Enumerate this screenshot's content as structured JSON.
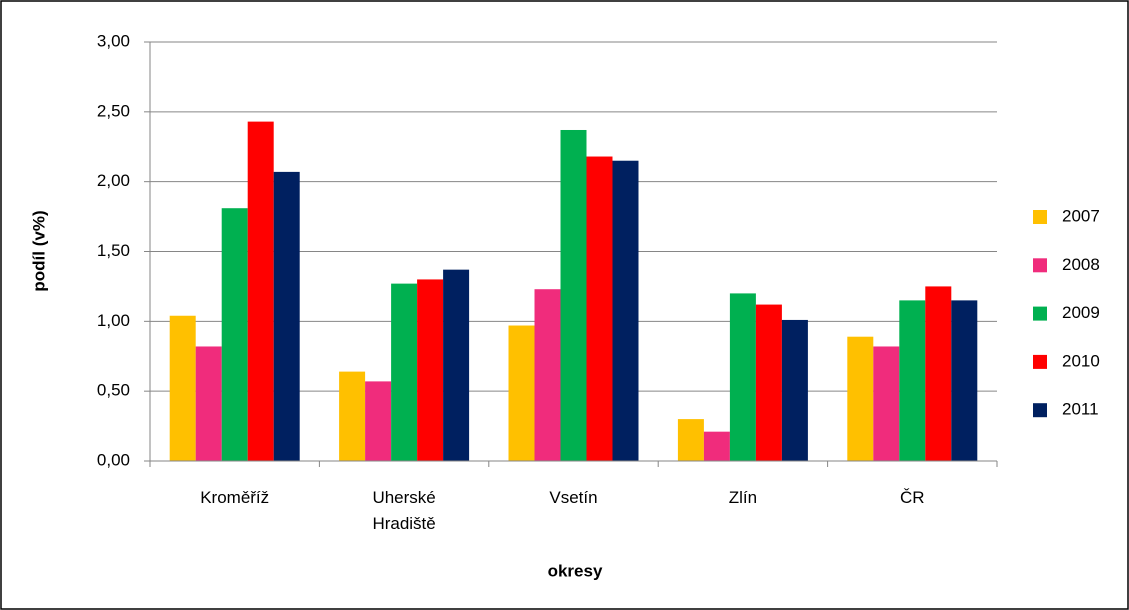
{
  "chart_data": {
    "type": "bar",
    "x_label": "okresy",
    "y_label": "podíl (v%)",
    "categories": [
      "Kroměříž",
      "Uherské Hradiště",
      "Vsetín",
      "Zlín",
      "ČR"
    ],
    "series": [
      {
        "name": "2007",
        "color": "#FFC000",
        "values": [
          1.04,
          0.64,
          0.97,
          0.3,
          0.89
        ]
      },
      {
        "name": "2008",
        "color": "#F02C7C",
        "values": [
          0.82,
          0.57,
          1.23,
          0.21,
          0.82
        ]
      },
      {
        "name": "2009",
        "color": "#00B050",
        "values": [
          1.81,
          1.27,
          2.37,
          1.2,
          1.15
        ]
      },
      {
        "name": "2010",
        "color": "#FF0000",
        "values": [
          2.43,
          1.3,
          2.18,
          1.12,
          1.25
        ]
      },
      {
        "name": "2011",
        "color": "#002060",
        "values": [
          2.07,
          1.37,
          2.15,
          1.01,
          1.15
        ]
      }
    ],
    "ylim": [
      0,
      3
    ],
    "yticks": [
      {
        "value": 0,
        "label": "0,00"
      },
      {
        "value": 0.5,
        "label": "0,50"
      },
      {
        "value": 1,
        "label": "1,00"
      },
      {
        "value": 1.5,
        "label": "1,50"
      },
      {
        "value": 2,
        "label": "2,00"
      },
      {
        "value": 2.5,
        "label": "2,50"
      },
      {
        "value": 3,
        "label": "3,00"
      }
    ],
    "grid": true,
    "legend": "right"
  }
}
